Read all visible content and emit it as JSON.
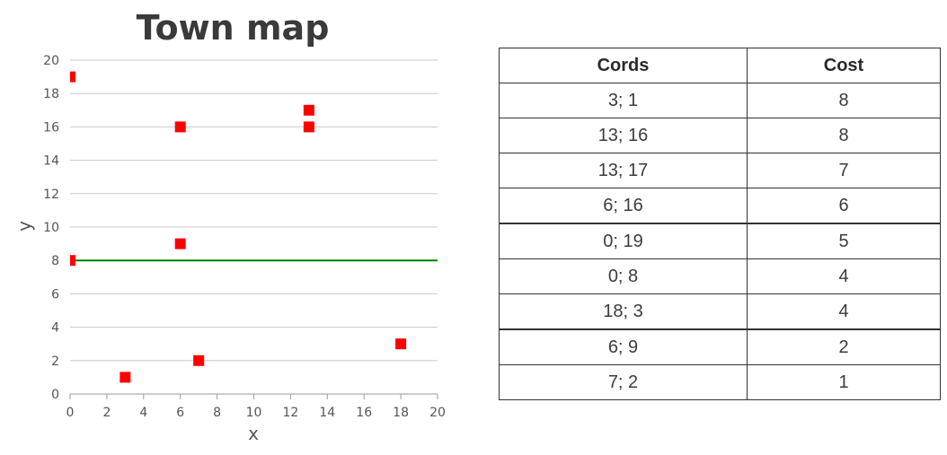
{
  "chart_data": {
    "type": "scatter",
    "title": "Town map",
    "xlabel": "x",
    "ylabel": "y",
    "xlim": [
      0,
      20
    ],
    "ylim": [
      0,
      20
    ],
    "x_ticks": [
      0,
      2,
      4,
      6,
      8,
      10,
      12,
      14,
      16,
      18,
      20
    ],
    "y_ticks": [
      0,
      2,
      4,
      6,
      8,
      10,
      12,
      14,
      16,
      18,
      20
    ],
    "grid": "horizontal",
    "series": [
      {
        "points": [
          {
            "x": 0,
            "y": 19
          },
          {
            "x": 6,
            "y": 16
          },
          {
            "x": 13,
            "y": 17
          },
          {
            "x": 13,
            "y": 16
          },
          {
            "x": 6,
            "y": 9
          },
          {
            "x": 0,
            "y": 8
          },
          {
            "x": 3,
            "y": 1
          },
          {
            "x": 7,
            "y": 2
          },
          {
            "x": 18,
            "y": 3
          }
        ],
        "color": "#ff0000",
        "marker": "square"
      }
    ],
    "reference_line": {
      "y": 8,
      "color": "#008000"
    }
  },
  "table": {
    "headers": [
      "Cords",
      "Cost"
    ],
    "rows": [
      {
        "cords": "3; 1",
        "cost": "8"
      },
      {
        "cords": "13; 16",
        "cost": "8"
      },
      {
        "cords": "13; 17",
        "cost": "7"
      },
      {
        "cords": "6; 16",
        "cost": "6"
      },
      {
        "cords": "0; 19",
        "cost": "5"
      },
      {
        "cords": "0; 8",
        "cost": "4"
      },
      {
        "cords": "18; 3",
        "cost": "4"
      },
      {
        "cords": "6; 9",
        "cost": "2"
      },
      {
        "cords": "7; 2",
        "cost": "1"
      }
    ]
  }
}
